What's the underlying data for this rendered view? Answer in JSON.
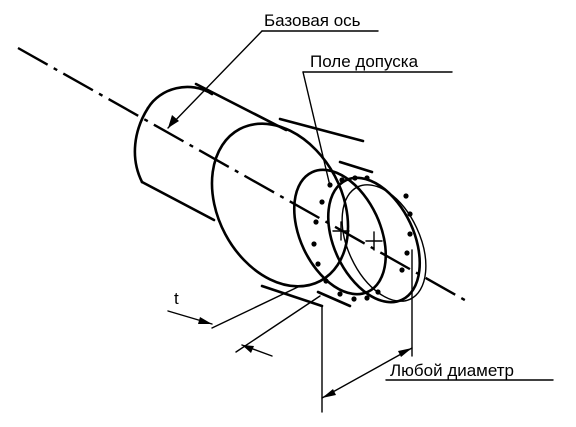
{
  "labels": {
    "base_axis": "Базовая ось",
    "tolerance_zone": "Поле допуска",
    "any_diameter": "Любой диаметр",
    "t": "t"
  }
}
